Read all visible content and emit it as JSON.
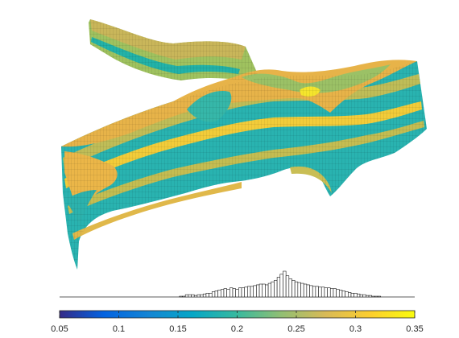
{
  "chart_data": {
    "type": "3d-surface-with-colorbar-histogram",
    "title": "",
    "colormap": "parula",
    "colorbar": {
      "orientation": "horizontal",
      "range": [
        0.05,
        0.35
      ],
      "ticks": [
        0.05,
        0.1,
        0.15,
        0.2,
        0.25,
        0.3,
        0.35
      ],
      "tick_labels": [
        "0.05",
        "0.1",
        "0.15",
        "0.2",
        "0.25",
        "0.3",
        "0.35"
      ]
    },
    "histogram": {
      "bin_width": 0.0025,
      "x": [
        0.1525,
        0.155,
        0.1575,
        0.16,
        0.1625,
        0.165,
        0.1675,
        0.17,
        0.1725,
        0.175,
        0.1775,
        0.18,
        0.1825,
        0.185,
        0.1875,
        0.19,
        0.1925,
        0.195,
        0.1975,
        0.2,
        0.2025,
        0.205,
        0.2075,
        0.21,
        0.2125,
        0.215,
        0.2175,
        0.22,
        0.2225,
        0.225,
        0.2275,
        0.23,
        0.2325,
        0.235,
        0.2375,
        0.24,
        0.2425,
        0.245,
        0.2475,
        0.25,
        0.2525,
        0.255,
        0.2575,
        0.26,
        0.2625,
        0.265,
        0.2675,
        0.27,
        0.2725,
        0.275,
        0.2775,
        0.28,
        0.2825,
        0.285,
        0.2875,
        0.29,
        0.2925,
        0.295,
        0.2975,
        0.3,
        0.3025,
        0.305,
        0.3075,
        0.31,
        0.3125,
        0.315,
        0.3175,
        0.32
      ],
      "values": [
        1,
        1,
        3,
        3,
        3,
        2,
        3,
        3,
        4,
        5,
        5,
        7,
        8,
        9,
        10,
        11,
        10,
        12,
        11,
        10,
        12,
        12,
        13,
        14,
        14,
        15,
        16,
        17,
        17,
        16,
        18,
        20,
        22,
        26,
        30,
        34,
        28,
        24,
        22,
        20,
        19,
        18,
        17,
        16,
        15,
        14,
        14,
        13,
        13,
        12,
        12,
        11,
        11,
        10,
        9,
        8,
        7,
        6,
        5,
        5,
        4,
        3,
        3,
        2,
        2,
        1,
        1,
        1
      ]
    }
  }
}
